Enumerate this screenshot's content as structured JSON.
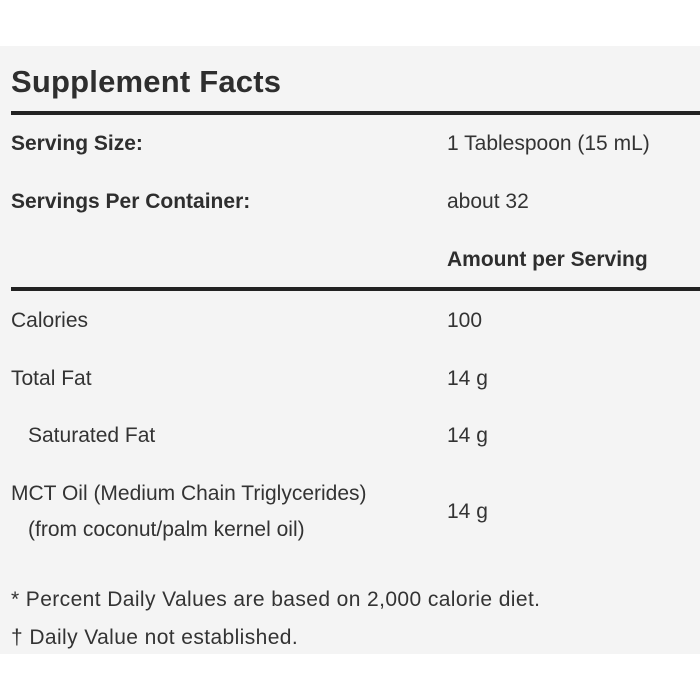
{
  "panel": {
    "title": "Supplement Facts"
  },
  "serving": {
    "size_label": "Serving Size:",
    "size_value": "1 Tablespoon (15 mL)",
    "per_container_label": "Servings Per Container:",
    "per_container_value": "about 32",
    "amount_header": "Amount per Serving"
  },
  "nutrients": [
    {
      "name": "Calories",
      "amount": "100"
    },
    {
      "name": "Total Fat",
      "amount": "14 g"
    },
    {
      "name": "Saturated Fat",
      "amount": "14 g"
    },
    {
      "name": "MCT Oil (Medium Chain Triglycerides)",
      "sub": "(from coconut/palm kernel oil)",
      "amount": "14 g"
    }
  ],
  "footnotes": [
    "* Percent Daily Values are based on 2,000 calorie diet.",
    "† Daily Value not established."
  ]
}
